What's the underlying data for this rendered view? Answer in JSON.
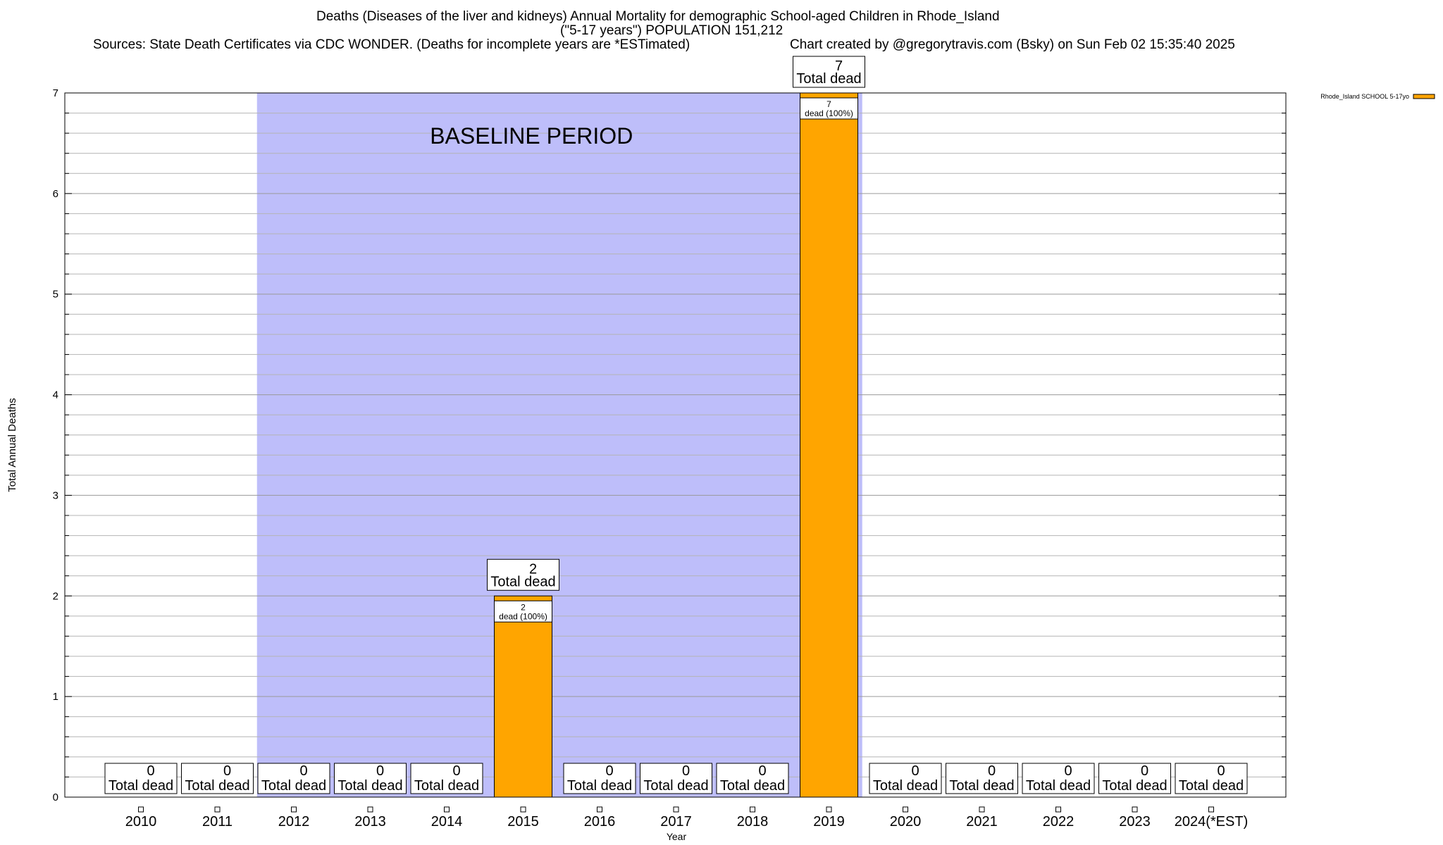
{
  "header": {
    "title_line1": "Deaths (Diseases of the liver and kidneys) Annual Mortality for demographic School-aged Children in Rhode_Island",
    "title_line2": "(\"5-17 years\") POPULATION 151,212",
    "sources": "Sources: State Death Certificates via CDC WONDER. (Deaths for incomplete years are *ESTimated)",
    "credit": "Chart created by @gregorytravis.com (Bsky) on Sun Feb 02 15:35:40 2025"
  },
  "chart_data": {
    "type": "bar",
    "xlabel": "Year",
    "ylabel": "Total Annual Deaths",
    "ylim": [
      0,
      7
    ],
    "yticks": [
      0,
      1,
      2,
      3,
      4,
      5,
      6,
      7
    ],
    "categories": [
      "2010",
      "2011",
      "2012",
      "2013",
      "2014",
      "2015",
      "2016",
      "2017",
      "2018",
      "2019",
      "2020",
      "2021",
      "2022",
      "2023",
      "2024(*EST)"
    ],
    "series": [
      {
        "name": "Rhode_Island SCHOOL 5-17yo",
        "color": "#FFA500",
        "values": [
          0,
          0,
          0,
          0,
          0,
          2,
          0,
          0,
          0,
          7,
          0,
          0,
          0,
          0,
          0
        ]
      }
    ],
    "total_label_suffix": "Total dead",
    "segment_label_suffix": "dead (100%)",
    "baseline": {
      "label": "BASELINE PERIOD",
      "from": "2012",
      "to": "2019",
      "color": "#BEBEFA"
    },
    "grid": true,
    "legend_position": "top-right"
  }
}
